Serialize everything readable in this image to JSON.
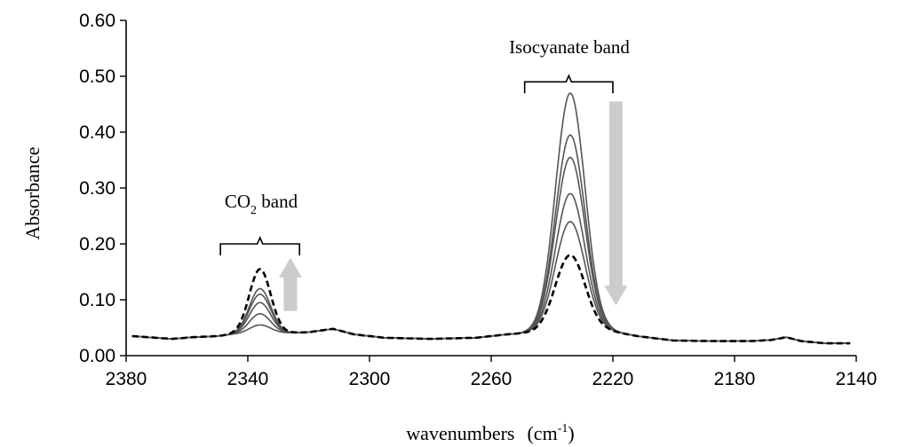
{
  "chart_data": {
    "type": "line",
    "title": "",
    "xlabel": "wavenumbers",
    "xlabel_unit": "(cm",
    "xlabel_unit_exp": "-1",
    "xlabel_unit_close": ")",
    "ylabel": "Absorbance",
    "xlim": [
      2380,
      2140
    ],
    "x_reversed": true,
    "ylim": [
      0,
      0.6
    ],
    "grid": false,
    "legend": "none",
    "xticks": [
      2380,
      2340,
      2300,
      2260,
      2220,
      2180,
      2140
    ],
    "yticks": [
      0,
      0.1,
      0.2,
      0.3,
      0.4,
      0.5,
      0.6
    ],
    "ytick_labels": [
      "0.00",
      "0.10",
      "0.20",
      "0.30",
      "0.40",
      "0.50",
      "0.60"
    ],
    "baseline": [
      [
        2378,
        0.035
      ],
      [
        2365,
        0.03
      ],
      [
        2358,
        0.033
      ],
      [
        2350,
        0.035
      ],
      [
        2345,
        0.038
      ],
      [
        2330,
        0.04
      ],
      [
        2320,
        0.042
      ],
      [
        2312,
        0.048
      ],
      [
        2305,
        0.038
      ],
      [
        2295,
        0.032
      ],
      [
        2280,
        0.03
      ],
      [
        2265,
        0.032
      ],
      [
        2255,
        0.038
      ],
      [
        2245,
        0.042
      ],
      [
        2238,
        0.048
      ],
      [
        2230,
        0.048
      ],
      [
        2222,
        0.045
      ],
      [
        2212,
        0.035
      ],
      [
        2200,
        0.027
      ],
      [
        2185,
        0.026
      ],
      [
        2175,
        0.026
      ],
      [
        2168,
        0.028
      ],
      [
        2163,
        0.033
      ],
      [
        2158,
        0.026
      ],
      [
        2150,
        0.022
      ],
      [
        2142,
        0.022
      ]
    ],
    "peaks": {
      "co2": {
        "center": 2336,
        "width": 3.5
      },
      "isocyanate": {
        "center": 2234,
        "width": 4.8
      }
    },
    "series": [
      {
        "style": "solid",
        "co2_peak": 0.055,
        "iso_peak": 0.47
      },
      {
        "style": "solid",
        "co2_peak": 0.075,
        "iso_peak": 0.395
      },
      {
        "style": "solid",
        "co2_peak": 0.095,
        "iso_peak": 0.355
      },
      {
        "style": "solid",
        "co2_peak": 0.11,
        "iso_peak": 0.29
      },
      {
        "style": "solid",
        "co2_peak": 0.12,
        "iso_peak": 0.24
      },
      {
        "style": "dashed",
        "co2_peak": 0.155,
        "iso_peak": 0.18
      }
    ],
    "annotations": {
      "co2_label": "CO",
      "co2_sub": "2",
      "co2_rest": " band",
      "co2_range": [
        2349,
        2323
      ],
      "co2_bracket_y": 0.2,
      "iso_label": "Isocyanate band",
      "iso_range": [
        2249,
        2220
      ],
      "iso_bracket_y": 0.49,
      "co2_arrow": {
        "x": 2326,
        "from": 0.08,
        "to": 0.175,
        "direction": "up"
      },
      "iso_arrow": {
        "x": 2219,
        "from": 0.455,
        "to": 0.09,
        "direction": "down"
      }
    },
    "colors": {
      "series_solid": "#555555",
      "series_dashed": "#000000",
      "arrow": "#cccccc"
    }
  }
}
